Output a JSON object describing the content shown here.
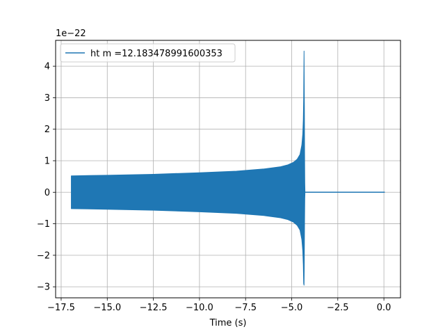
{
  "chart_data": {
    "type": "line",
    "title": "",
    "xlabel": "Time (s)",
    "ylabel": "",
    "y_offset_label": "1e−22",
    "y_scale_exponent": -22,
    "xlim": [
      -17.8,
      0.9
    ],
    "ylim": [
      -3.35,
      4.82
    ],
    "x_ticks": [
      -17.5,
      -15.0,
      -12.5,
      -10.0,
      -7.5,
      -5.0,
      -2.5,
      0.0
    ],
    "x_tick_labels": [
      "−17.5",
      "−15.0",
      "−12.5",
      "−10.0",
      "−7.5",
      "−5.0",
      "−2.5",
      "0.0"
    ],
    "y_ticks": [
      -3,
      -2,
      -1,
      0,
      1,
      2,
      3,
      4
    ],
    "y_tick_labels": [
      "−3",
      "−2",
      "−1",
      "0",
      "1",
      "2",
      "3",
      "4"
    ],
    "grid": true,
    "legend_position": "top-left",
    "series": [
      {
        "name": "ht m =12.183478991600353",
        "color": "#1f77b4",
        "x": [
          -16.95,
          -15,
          -12.5,
          -10,
          -8,
          -6.5,
          -5.6,
          -5.2,
          -4.9,
          -4.7,
          -4.55,
          -4.45,
          -4.4,
          -4.37,
          -4.35,
          -4.33,
          -4.32,
          -4.31,
          -4.3,
          -4.29,
          -4.28
        ],
        "upper": [
          0.52,
          0.54,
          0.57,
          0.62,
          0.67,
          0.74,
          0.81,
          0.87,
          0.95,
          1.05,
          1.2,
          1.5,
          1.85,
          2.3,
          3.0,
          4.48,
          3.5,
          2.5,
          1.2,
          0.3,
          0.03
        ],
        "lower": [
          -0.52,
          -0.54,
          -0.57,
          -0.62,
          -0.67,
          -0.74,
          -0.81,
          -0.87,
          -0.95,
          -1.05,
          -1.2,
          -1.5,
          -1.85,
          -2.3,
          -2.9,
          -2.95,
          -2.4,
          -1.5,
          -0.8,
          -0.2,
          -0.03
        ],
        "ringdown_x": [
          -4.28,
          0.05
        ],
        "ringdown_y": [
          0,
          0
        ]
      }
    ]
  }
}
